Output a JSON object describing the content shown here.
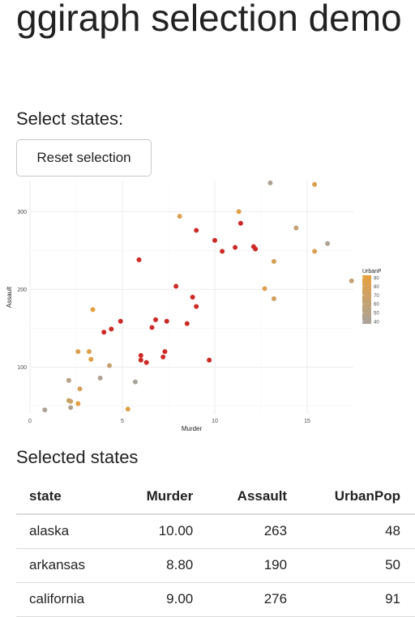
{
  "page": {
    "title": "ggiraph selection demo",
    "select_label": "Select states:",
    "reset_button": "Reset selection",
    "table_title": "Selected states"
  },
  "table": {
    "headers": [
      "state",
      "Murder",
      "Assault",
      "UrbanPop"
    ],
    "rows": [
      [
        "alaska",
        "10.00",
        "263",
        "48"
      ],
      [
        "arkansas",
        "8.80",
        "190",
        "50"
      ],
      [
        "california",
        "9.00",
        "276",
        "91"
      ]
    ]
  },
  "colors": {
    "selected": "#cc2a26",
    "urbanpop_low": "#a8a39b",
    "urbanpop_high": "#e89f3c",
    "grid": "#ebebeb"
  },
  "chart_data": {
    "type": "scatter",
    "xlabel": "Murder",
    "ylabel": "Assault",
    "xlim": [
      0,
      17.5
    ],
    "ylim": [
      40,
      340
    ],
    "x_ticks": [
      0,
      5,
      10,
      15
    ],
    "y_ticks": [
      100,
      200,
      300
    ],
    "legend": {
      "title": "UrbanPop",
      "ticks": [
        90,
        80,
        70,
        60,
        50,
        40
      ],
      "placement": "right"
    },
    "grid": true,
    "points": [
      {
        "x": 0.8,
        "y": 45,
        "urbanpop": 44,
        "selected": false
      },
      {
        "x": 2.1,
        "y": 83,
        "urbanpop": 51,
        "selected": false
      },
      {
        "x": 2.2,
        "y": 48,
        "urbanpop": 46,
        "selected": false
      },
      {
        "x": 2.1,
        "y": 57,
        "urbanpop": 66,
        "selected": false
      },
      {
        "x": 2.2,
        "y": 56,
        "urbanpop": 67,
        "selected": false
      },
      {
        "x": 2.6,
        "y": 53,
        "urbanpop": 85,
        "selected": false
      },
      {
        "x": 2.7,
        "y": 72,
        "urbanpop": 75,
        "selected": false
      },
      {
        "x": 2.6,
        "y": 120,
        "urbanpop": 80,
        "selected": false
      },
      {
        "x": 3.2,
        "y": 120,
        "urbanpop": 82,
        "selected": false
      },
      {
        "x": 3.3,
        "y": 110,
        "urbanpop": 86,
        "selected": false
      },
      {
        "x": 3.4,
        "y": 174,
        "urbanpop": 87,
        "selected": false
      },
      {
        "x": 3.8,
        "y": 86,
        "urbanpop": 45,
        "selected": false
      },
      {
        "x": 4.3,
        "y": 102,
        "urbanpop": 62,
        "selected": false
      },
      {
        "x": 4.0,
        "y": 145,
        "urbanpop": 0,
        "selected": true
      },
      {
        "x": 4.4,
        "y": 149,
        "urbanpop": 0,
        "selected": true
      },
      {
        "x": 4.9,
        "y": 159,
        "urbanpop": 0,
        "selected": true
      },
      {
        "x": 5.3,
        "y": 46,
        "urbanpop": 83,
        "selected": false
      },
      {
        "x": 5.7,
        "y": 81,
        "urbanpop": 39,
        "selected": false
      },
      {
        "x": 5.9,
        "y": 238,
        "urbanpop": 0,
        "selected": true
      },
      {
        "x": 6.0,
        "y": 115,
        "urbanpop": 0,
        "selected": true
      },
      {
        "x": 6.0,
        "y": 109,
        "urbanpop": 0,
        "selected": true
      },
      {
        "x": 6.3,
        "y": 106,
        "urbanpop": 0,
        "selected": true
      },
      {
        "x": 6.6,
        "y": 151,
        "urbanpop": 0,
        "selected": true
      },
      {
        "x": 6.8,
        "y": 161,
        "urbanpop": 0,
        "selected": true
      },
      {
        "x": 7.2,
        "y": 113,
        "urbanpop": 0,
        "selected": true
      },
      {
        "x": 7.3,
        "y": 120,
        "urbanpop": 0,
        "selected": true
      },
      {
        "x": 7.4,
        "y": 159,
        "urbanpop": 0,
        "selected": true
      },
      {
        "x": 7.9,
        "y": 204,
        "urbanpop": 0,
        "selected": true
      },
      {
        "x": 8.1,
        "y": 294,
        "urbanpop": 80,
        "selected": false
      },
      {
        "x": 8.5,
        "y": 156,
        "urbanpop": 0,
        "selected": true
      },
      {
        "x": 8.8,
        "y": 190,
        "urbanpop": 0,
        "selected": true
      },
      {
        "x": 9.0,
        "y": 276,
        "urbanpop": 0,
        "selected": true
      },
      {
        "x": 9.0,
        "y": 178,
        "urbanpop": 0,
        "selected": true
      },
      {
        "x": 9.7,
        "y": 109,
        "urbanpop": 0,
        "selected": true
      },
      {
        "x": 10.0,
        "y": 263,
        "urbanpop": 0,
        "selected": true
      },
      {
        "x": 10.4,
        "y": 249,
        "urbanpop": 0,
        "selected": true
      },
      {
        "x": 11.1,
        "y": 254,
        "urbanpop": 0,
        "selected": true
      },
      {
        "x": 11.4,
        "y": 285,
        "urbanpop": 0,
        "selected": true
      },
      {
        "x": 11.3,
        "y": 300,
        "urbanpop": 83,
        "selected": false
      },
      {
        "x": 12.1,
        "y": 255,
        "urbanpop": 0,
        "selected": true
      },
      {
        "x": 12.2,
        "y": 252,
        "urbanpop": 0,
        "selected": true
      },
      {
        "x": 12.7,
        "y": 201,
        "urbanpop": 80,
        "selected": false
      },
      {
        "x": 13.0,
        "y": 337,
        "urbanpop": 45,
        "selected": false
      },
      {
        "x": 13.2,
        "y": 236,
        "urbanpop": 74,
        "selected": false
      },
      {
        "x": 13.2,
        "y": 188,
        "urbanpop": 72,
        "selected": false
      },
      {
        "x": 14.4,
        "y": 279,
        "urbanpop": 60,
        "selected": false
      },
      {
        "x": 15.4,
        "y": 335,
        "urbanpop": 80,
        "selected": false
      },
      {
        "x": 15.4,
        "y": 249,
        "urbanpop": 80,
        "selected": false
      },
      {
        "x": 16.1,
        "y": 259,
        "urbanpop": 44,
        "selected": false
      },
      {
        "x": 17.4,
        "y": 211,
        "urbanpop": 60,
        "selected": false
      }
    ]
  }
}
